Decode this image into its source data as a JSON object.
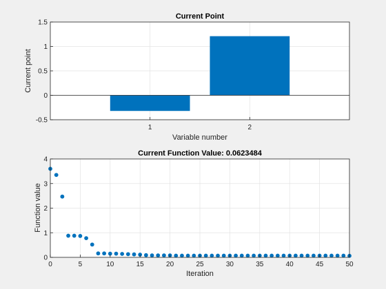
{
  "chart_data": [
    {
      "type": "bar",
      "title": "Current Point",
      "xlabel": "Variable number",
      "ylabel": "Current point",
      "categories": [
        "1",
        "2"
      ],
      "values": [
        -0.32,
        1.21
      ],
      "ylim": [
        -0.5,
        1.5
      ],
      "yticks": [
        "-0.5",
        "0",
        "0.5",
        "1",
        "1.5"
      ],
      "grid": true,
      "bar_color": "#0072bd"
    },
    {
      "type": "scatter",
      "title": "Current Function Value: 0.0623484",
      "xlabel": "Iteration",
      "ylabel": "Function value",
      "xlim": [
        0,
        50
      ],
      "ylim": [
        0,
        4
      ],
      "xticks": [
        "0",
        "5",
        "10",
        "15",
        "20",
        "25",
        "30",
        "35",
        "40",
        "45",
        "50"
      ],
      "yticks": [
        "0",
        "1",
        "2",
        "3",
        "4"
      ],
      "grid": true,
      "marker_color": "#0072bd",
      "x": [
        0,
        1,
        2,
        3,
        4,
        5,
        6,
        7,
        8,
        9,
        10,
        11,
        12,
        13,
        14,
        15,
        16,
        17,
        18,
        19,
        20,
        21,
        22,
        23,
        24,
        25,
        26,
        27,
        28,
        29,
        30,
        31,
        32,
        33,
        34,
        35,
        36,
        37,
        38,
        39,
        40,
        41,
        42,
        43,
        44,
        45,
        46,
        47,
        48,
        49,
        50
      ],
      "y": [
        3.6,
        3.35,
        2.47,
        0.88,
        0.88,
        0.87,
        0.78,
        0.52,
        0.16,
        0.16,
        0.15,
        0.15,
        0.14,
        0.13,
        0.12,
        0.11,
        0.09,
        0.08,
        0.08,
        0.08,
        0.08,
        0.07,
        0.07,
        0.07,
        0.07,
        0.07,
        0.07,
        0.07,
        0.07,
        0.07,
        0.07,
        0.07,
        0.07,
        0.07,
        0.07,
        0.07,
        0.07,
        0.07,
        0.07,
        0.07,
        0.07,
        0.07,
        0.07,
        0.07,
        0.07,
        0.07,
        0.07,
        0.07,
        0.07,
        0.07,
        0.0623484
      ]
    }
  ]
}
